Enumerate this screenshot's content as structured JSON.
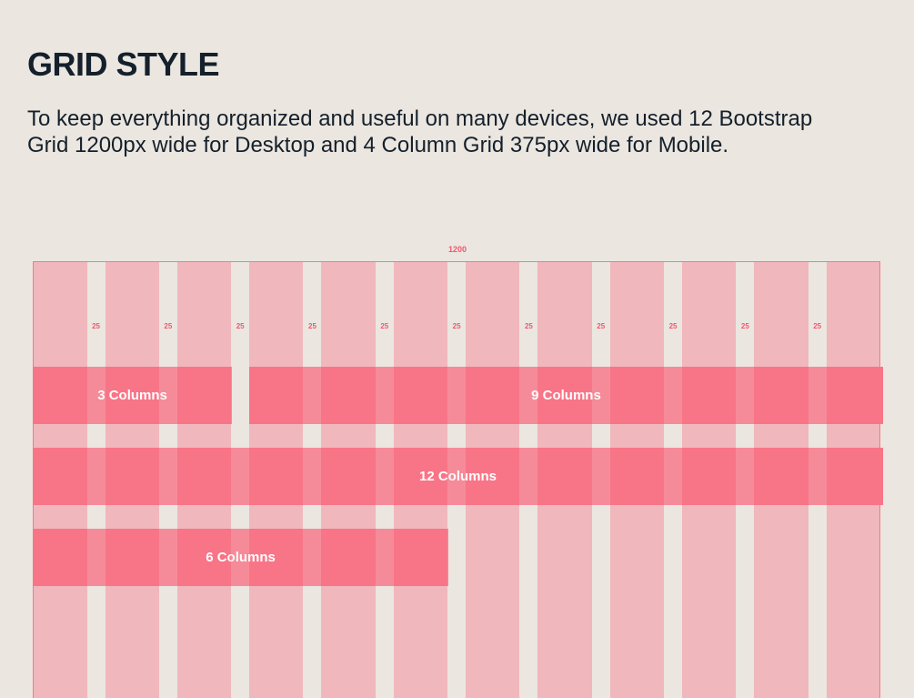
{
  "title": "GRID STYLE",
  "description": "To keep everything organized and useful on many devices, we used 12 Bootstrap Grid 1200px wide for Desktop and 4 Column Grid 375px wide for Mobile.",
  "grid": {
    "total_width_label": "1200",
    "columns": 12,
    "gutter_label": "25",
    "colors": {
      "column": "#f0b7bc",
      "gutter": "#ebe6e0",
      "bar": "#f87587",
      "accent": "#f0576f"
    },
    "bars": [
      {
        "label": "3 Columns",
        "start": 1,
        "span": 3,
        "row": 1
      },
      {
        "label": "9 Columns",
        "start": 4,
        "span": 9,
        "row": 1
      },
      {
        "label": "12 Columns",
        "start": 1,
        "span": 12,
        "row": 2
      },
      {
        "label": "6 Columns",
        "start": 1,
        "span": 6,
        "row": 3
      }
    ]
  }
}
